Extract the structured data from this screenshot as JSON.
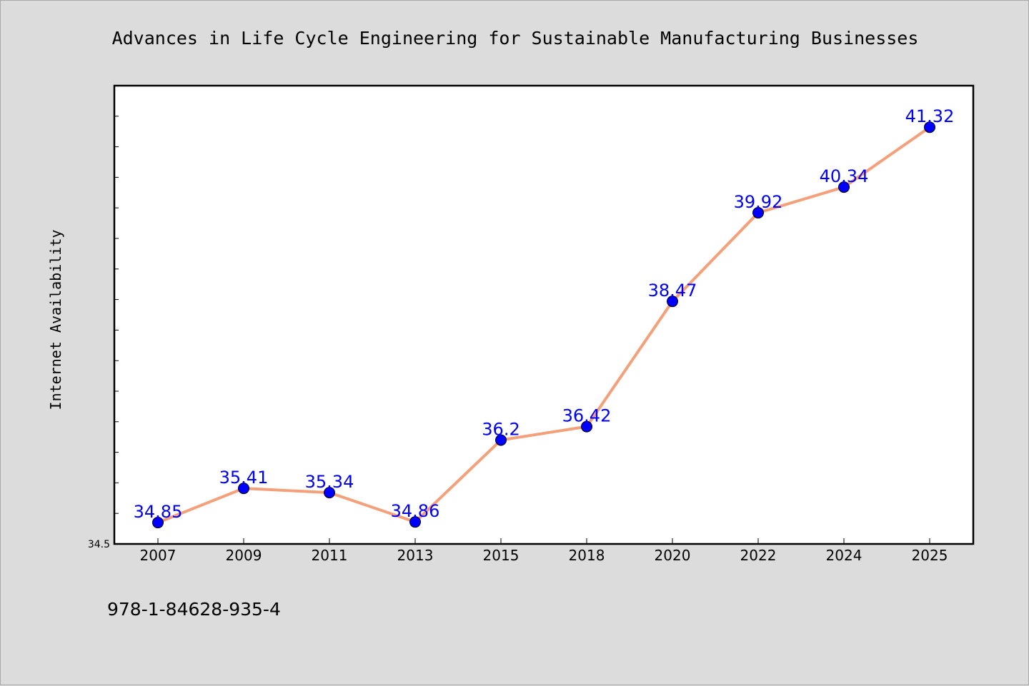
{
  "chart_data": {
    "type": "line",
    "title": "Advances in Life Cycle Engineering for Sustainable Manufacturing Businesses",
    "xlabel": "",
    "ylabel": "Internet Availability",
    "categories": [
      "2007",
      "2009",
      "2011",
      "2013",
      "2015",
      "2018",
      "2020",
      "2022",
      "2024",
      "2025"
    ],
    "series": [
      {
        "values": [
          34.85,
          35.41,
          35.34,
          34.86,
          36.2,
          36.42,
          38.47,
          39.92,
          40.34,
          41.32
        ],
        "data_labels": [
          "34.85",
          "35.41",
          "35.34",
          "34.86",
          "36.2",
          "36.42",
          "38.47",
          "39.92",
          "40.34",
          "41.32"
        ],
        "line_color": "#f4a07a",
        "marker_color": "#0000ff"
      }
    ],
    "ylim": [
      34.5,
      42.0
    ],
    "y_tick_labels": [
      "34.5"
    ],
    "y_minor_tick_step": 0.5,
    "grid": false,
    "legend": "none"
  },
  "footer_text": "978-1-84628-935-4",
  "colors": {
    "background": "#dcdcdc",
    "plot_background": "#ffffff",
    "axis": "#000000",
    "data_label": "#0000ff"
  }
}
